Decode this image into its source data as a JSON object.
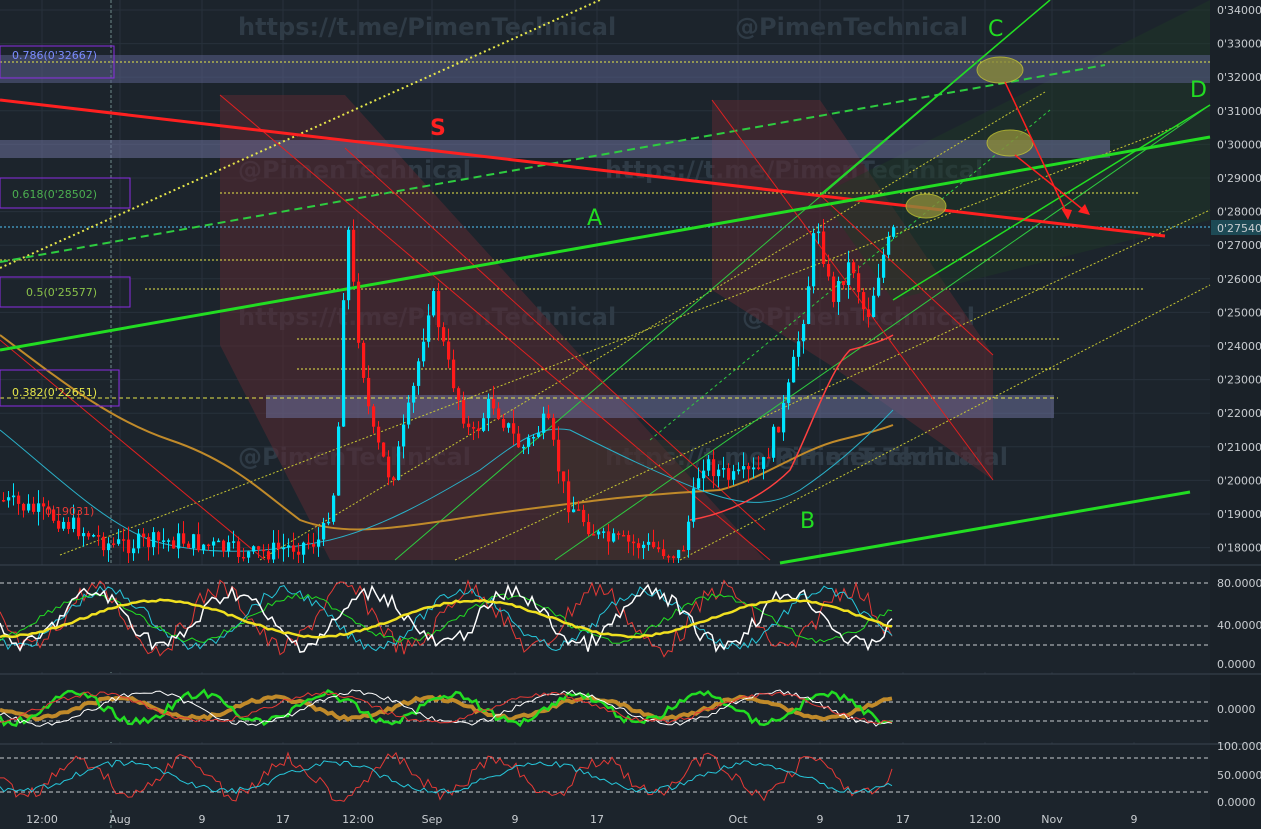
{
  "watermarks": {
    "url": "https://t.me/PimenTechnical",
    "handle": "@PimenTechnical"
  },
  "price_axis": {
    "labels": [
      "0'34000",
      "0'33000",
      "0'32000",
      "0'31000",
      "0'30000",
      "0'29000",
      "0'28000",
      "0'27000",
      "0'26000",
      "0'25000",
      "0'24000",
      "0'23000",
      "0'22000",
      "0'21000",
      "0'20000",
      "0'19000",
      "0'18000"
    ],
    "current_price": "0'27540"
  },
  "time_axis": {
    "labels": [
      "12:00",
      "Aug",
      "9",
      "17",
      "12:00",
      "Sep",
      "9",
      "17",
      "Oct",
      "9",
      "17",
      "12:00",
      "Nov",
      "9"
    ]
  },
  "fib_levels": [
    {
      "label": "0.786(0'32667)",
      "color": "#7b8cff"
    },
    {
      "label": "0.618(0'28502)",
      "color": "#4caf50"
    },
    {
      "label": "0.5(0'25577)",
      "color": "#8bc34a"
    },
    {
      "label": "0.382(0'22651)",
      "color": "#e6e64a"
    },
    {
      "label": "0'19031)",
      "color": "#e53935"
    }
  ],
  "annotations": {
    "S": "S",
    "A": "A",
    "B": "B",
    "C": "C",
    "D": "D"
  },
  "indicator1": {
    "labels": [
      "80.0000",
      "40.0000",
      "0.0000"
    ]
  },
  "indicator2": {
    "labels": [
      "0.0000"
    ]
  },
  "indicator3": {
    "labels": [
      "100.0000",
      "50.0000",
      "0.0000"
    ]
  },
  "colors": {
    "background": "#1c242c",
    "up": "#00e5ff",
    "down": "#ff1a1a",
    "trend_green": "#22dd22",
    "trend_red": "#ff2020",
    "fib_yellow": "#e6e64a",
    "zone_purple": "#6b6f9a"
  },
  "chart_data": {
    "type": "candlestick",
    "symbol_price_scale": "0'xxxxx",
    "ylim": [
      0.175,
      0.343
    ],
    "current_price": 0.2754,
    "x_labels": [
      "12:00",
      "Aug",
      "9",
      "17",
      "12:00",
      "Sep",
      "9",
      "17",
      "Oct",
      "9",
      "17",
      "12:00",
      "Nov",
      "9"
    ],
    "fib_retracement": [
      {
        "ratio": 0.786,
        "price": 0.32667
      },
      {
        "ratio": 0.618,
        "price": 0.28502
      },
      {
        "ratio": 0.5,
        "price": 0.25577
      },
      {
        "ratio": 0.382,
        "price": 0.22651
      }
    ],
    "trendlines": [
      {
        "name": "S",
        "color": "red"
      },
      {
        "name": "A",
        "color": "green"
      },
      {
        "name": "B",
        "color": "green"
      },
      {
        "name": "C",
        "color": "green"
      },
      {
        "name": "D",
        "color": "green"
      }
    ],
    "oscillators": [
      {
        "name": "indicator-1",
        "ylim": [
          0,
          100
        ],
        "gridlines": [
          80,
          40,
          0
        ]
      },
      {
        "name": "indicator-2",
        "gridlines": [
          0
        ]
      },
      {
        "name": "indicator-3",
        "ylim": [
          0,
          100
        ],
        "gridlines": [
          100,
          50,
          0
        ]
      }
    ]
  }
}
